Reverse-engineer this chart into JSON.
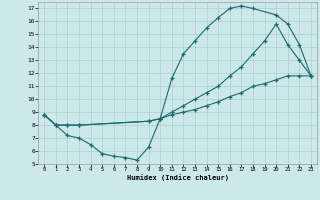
{
  "xlabel": "Humidex (Indice chaleur)",
  "bg_color": "#cce8e8",
  "grid_color": "#aacfcf",
  "line_color": "#1a6b6b",
  "xlim": [
    -0.5,
    23.5
  ],
  "ylim": [
    5,
    17.5
  ],
  "xticks": [
    0,
    1,
    2,
    3,
    4,
    5,
    6,
    7,
    8,
    9,
    10,
    11,
    12,
    13,
    14,
    15,
    16,
    17,
    18,
    19,
    20,
    21,
    22,
    23
  ],
  "yticks": [
    5,
    6,
    7,
    8,
    9,
    10,
    11,
    12,
    13,
    14,
    15,
    16,
    17
  ],
  "line1_x": [
    0,
    1,
    2,
    3,
    4,
    5,
    6,
    7,
    8,
    9,
    10,
    11,
    12,
    13,
    14,
    15,
    16,
    17,
    18,
    20,
    21,
    22,
    23
  ],
  "line1_y": [
    8.8,
    8.0,
    7.2,
    7.0,
    6.5,
    5.8,
    5.6,
    5.5,
    5.3,
    6.3,
    8.5,
    11.6,
    13.5,
    14.5,
    15.5,
    16.3,
    17.0,
    17.2,
    17.0,
    16.5,
    15.8,
    14.2,
    11.8
  ],
  "line2_x": [
    0,
    1,
    2,
    3,
    9,
    10,
    11,
    12,
    13,
    14,
    15,
    16,
    17,
    18,
    19,
    20,
    21,
    22,
    23
  ],
  "line2_y": [
    8.8,
    8.0,
    8.0,
    8.0,
    8.3,
    8.5,
    9.0,
    9.5,
    10.0,
    10.5,
    11.0,
    11.8,
    12.5,
    13.5,
    14.5,
    15.8,
    14.2,
    13.0,
    11.8
  ],
  "line3_x": [
    0,
    1,
    2,
    3,
    9,
    10,
    11,
    12,
    13,
    14,
    15,
    16,
    17,
    18,
    19,
    20,
    21,
    22,
    23
  ],
  "line3_y": [
    8.8,
    8.0,
    8.0,
    8.0,
    8.3,
    8.5,
    8.8,
    9.0,
    9.2,
    9.5,
    9.8,
    10.2,
    10.5,
    11.0,
    11.2,
    11.5,
    11.8,
    11.8,
    11.8
  ]
}
